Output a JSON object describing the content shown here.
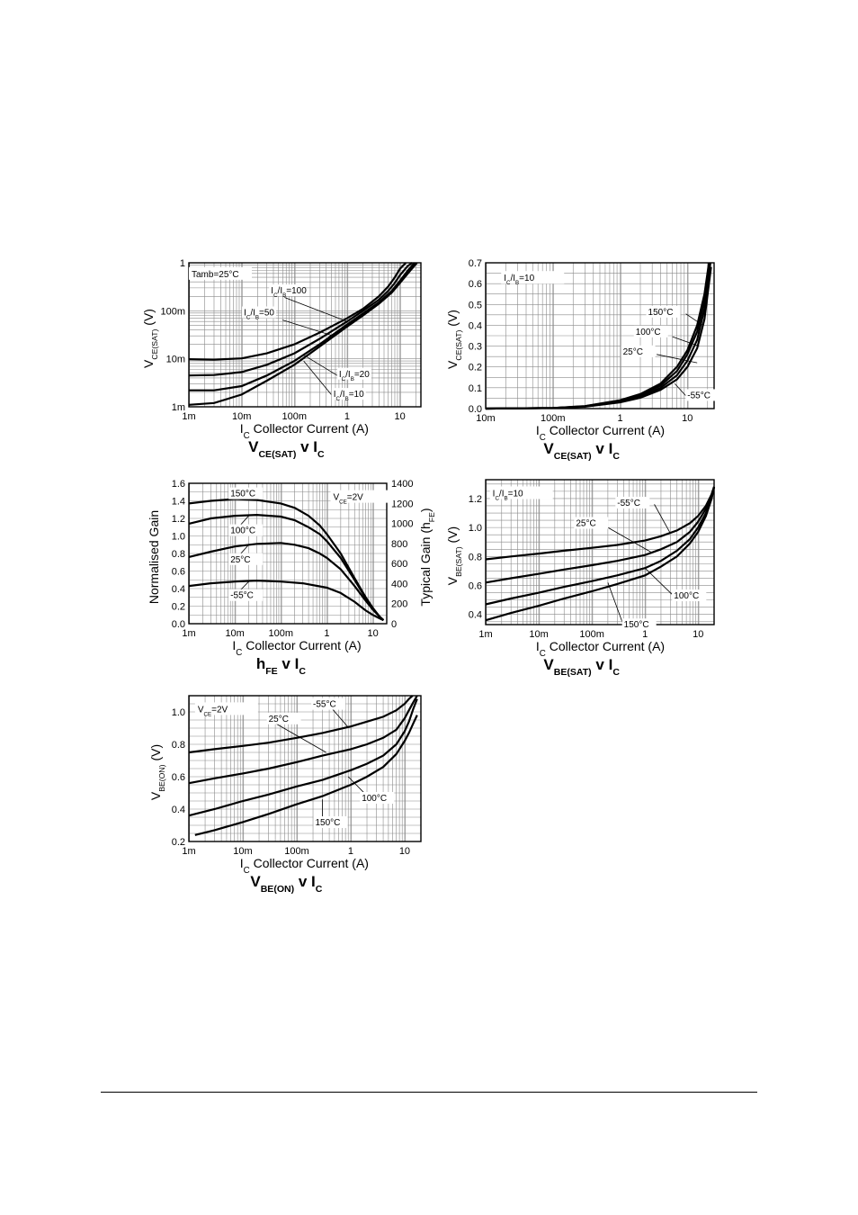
{
  "chart_data": [
    {
      "id": "vcesat_log",
      "type": "line",
      "title": "VCE(SAT) v IC",
      "xlabel": "IC Collector Current (A)",
      "ylabel": "VCE(SAT) (V)",
      "x_scale": "log",
      "y_scale": "log",
      "xlim": [
        0.001,
        25
      ],
      "ylim": [
        0.001,
        1
      ],
      "x_ticks": [
        {
          "v": 0.001,
          "t": "1m"
        },
        {
          "v": 0.01,
          "t": "10m"
        },
        {
          "v": 0.1,
          "t": "100m"
        },
        {
          "v": 1,
          "t": "1"
        },
        {
          "v": 10,
          "t": "10"
        }
      ],
      "y_ticks": [
        {
          "v": 0.001,
          "t": "1m"
        },
        {
          "v": 0.01,
          "t": "10m"
        },
        {
          "v": 0.1,
          "t": "100m"
        },
        {
          "v": 1,
          "t": "1"
        }
      ],
      "annotations": [
        "Tamb=25°C"
      ],
      "series": [
        {
          "name": "IC/IB=100",
          "x": [
            0.001,
            0.003,
            0.01,
            0.03,
            0.1,
            0.3,
            1,
            2,
            4,
            6,
            8,
            10,
            13
          ],
          "y": [
            0.0098,
            0.0096,
            0.0102,
            0.013,
            0.02,
            0.035,
            0.07,
            0.11,
            0.2,
            0.32,
            0.5,
            0.75,
            1
          ]
        },
        {
          "name": "IC/IB=50",
          "x": [
            0.001,
            0.003,
            0.01,
            0.03,
            0.1,
            0.3,
            1,
            2,
            4,
            6,
            8,
            10,
            14,
            17
          ],
          "y": [
            0.0045,
            0.0046,
            0.0053,
            0.0075,
            0.013,
            0.026,
            0.06,
            0.1,
            0.17,
            0.26,
            0.38,
            0.55,
            0.85,
            1
          ]
        },
        {
          "name": "IC/IB=20",
          "x": [
            0.001,
            0.003,
            0.01,
            0.03,
            0.1,
            0.3,
            1,
            2,
            4,
            7,
            10,
            14,
            19
          ],
          "y": [
            0.0022,
            0.0022,
            0.0027,
            0.0045,
            0.009,
            0.02,
            0.052,
            0.088,
            0.15,
            0.26,
            0.42,
            0.68,
            1
          ]
        },
        {
          "name": "IC/IB=10",
          "x": [
            0.001,
            0.003,
            0.01,
            0.03,
            0.1,
            0.3,
            1,
            2,
            4,
            7,
            10,
            15,
            21
          ],
          "y": [
            0.0011,
            0.0012,
            0.0018,
            0.0035,
            0.0075,
            0.018,
            0.047,
            0.08,
            0.14,
            0.24,
            0.38,
            0.65,
            1
          ]
        }
      ]
    },
    {
      "id": "vcesat_lin",
      "type": "line",
      "title": "VCE(SAT) v IC",
      "xlabel": "IC Collector Current (A)",
      "ylabel": "VCE(SAT) (V)",
      "x_scale": "log",
      "y_scale": "linear",
      "xlim": [
        0.01,
        25
      ],
      "ylim": [
        0,
        0.7
      ],
      "x_ticks": [
        {
          "v": 0.01,
          "t": "10m"
        },
        {
          "v": 0.1,
          "t": "100m"
        },
        {
          "v": 1,
          "t": "1"
        },
        {
          "v": 10,
          "t": "10"
        }
      ],
      "y_ticks": [
        {
          "v": 0,
          "t": "0.0"
        },
        {
          "v": 0.1,
          "t": "0.1"
        },
        {
          "v": 0.2,
          "t": "0.2"
        },
        {
          "v": 0.3,
          "t": "0.3"
        },
        {
          "v": 0.4,
          "t": "0.4"
        },
        {
          "v": 0.5,
          "t": "0.5"
        },
        {
          "v": 0.6,
          "t": "0.6"
        },
        {
          "v": 0.7,
          "t": "0.7"
        }
      ],
      "annotations": [
        "IC/IB=10"
      ],
      "series": [
        {
          "name": "150°C",
          "x": [
            0.01,
            0.1,
            0.3,
            1,
            2,
            4,
            7,
            10,
            14,
            18,
            21
          ],
          "y": [
            0,
            0.003,
            0.012,
            0.04,
            0.07,
            0.12,
            0.2,
            0.28,
            0.4,
            0.55,
            0.7
          ]
        },
        {
          "name": "100°C",
          "x": [
            0.01,
            0.1,
            0.3,
            1,
            2,
            4,
            7,
            10,
            14,
            18,
            21.5
          ],
          "y": [
            0,
            0.003,
            0.011,
            0.037,
            0.065,
            0.11,
            0.18,
            0.26,
            0.37,
            0.52,
            0.7
          ]
        },
        {
          "name": "25°C",
          "x": [
            0.01,
            0.1,
            0.3,
            1,
            2,
            4,
            7,
            10,
            14,
            18,
            22
          ],
          "y": [
            0,
            0.003,
            0.01,
            0.034,
            0.058,
            0.1,
            0.16,
            0.23,
            0.33,
            0.48,
            0.7
          ]
        },
        {
          "name": "-55°C",
          "x": [
            0.01,
            0.1,
            0.3,
            1,
            2,
            4,
            7,
            10,
            14,
            18,
            22.5
          ],
          "y": [
            0,
            0.003,
            0.009,
            0.03,
            0.052,
            0.09,
            0.14,
            0.2,
            0.29,
            0.43,
            0.68
          ]
        }
      ]
    },
    {
      "id": "hfe",
      "type": "line",
      "title": "hFE v IC",
      "xlabel": "IC Collector Current (A)",
      "ylabel": "Normalised Gain",
      "ylabel_right": "Typical Gain (hFE)",
      "x_scale": "log",
      "y_scale": "linear",
      "xlim": [
        0.001,
        20
      ],
      "ylim": [
        0,
        1.6
      ],
      "x_ticks": [
        {
          "v": 0.001,
          "t": "1m"
        },
        {
          "v": 0.01,
          "t": "10m"
        },
        {
          "v": 0.1,
          "t": "100m"
        },
        {
          "v": 1,
          "t": "1"
        },
        {
          "v": 10,
          "t": "10"
        }
      ],
      "y_ticks": [
        {
          "v": 0,
          "t": "0.0"
        },
        {
          "v": 0.2,
          "t": "0.2"
        },
        {
          "v": 0.4,
          "t": "0.4"
        },
        {
          "v": 0.6,
          "t": "0.6"
        },
        {
          "v": 0.8,
          "t": "0.8"
        },
        {
          "v": 1,
          "t": "1.0"
        },
        {
          "v": 1.2,
          "t": "1.2"
        },
        {
          "v": 1.4,
          "t": "1.4"
        },
        {
          "v": 1.6,
          "t": "1.6"
        }
      ],
      "y2_ticks": [
        {
          "v": 0,
          "t": "0"
        },
        {
          "v": 0.2286,
          "t": "200"
        },
        {
          "v": 0.4571,
          "t": "400"
        },
        {
          "v": 0.6857,
          "t": "600"
        },
        {
          "v": 0.9143,
          "t": "800"
        },
        {
          "v": 1.1429,
          "t": "1000"
        },
        {
          "v": 1.3714,
          "t": "1200"
        },
        {
          "v": 1.6,
          "t": "1400"
        }
      ],
      "annotations": [
        "VCE=2V"
      ],
      "series": [
        {
          "name": "150°C",
          "x": [
            0.001,
            0.003,
            0.01,
            0.03,
            0.1,
            0.2,
            0.4,
            0.7,
            1,
            2,
            4,
            7,
            10,
            14,
            17
          ],
          "y": [
            1.37,
            1.4,
            1.42,
            1.41,
            1.37,
            1.32,
            1.23,
            1.12,
            1.02,
            0.8,
            0.52,
            0.3,
            0.18,
            0.08,
            0.04
          ]
        },
        {
          "name": "100°C",
          "x": [
            0.001,
            0.003,
            0.01,
            0.03,
            0.1,
            0.2,
            0.4,
            0.7,
            1,
            2,
            4,
            7,
            10,
            14,
            17
          ],
          "y": [
            1.14,
            1.2,
            1.23,
            1.24,
            1.22,
            1.18,
            1.1,
            1.02,
            0.94,
            0.75,
            0.5,
            0.29,
            0.17,
            0.08,
            0.04
          ]
        },
        {
          "name": "25°C",
          "x": [
            0.001,
            0.003,
            0.01,
            0.03,
            0.1,
            0.2,
            0.4,
            0.7,
            1,
            2,
            4,
            7,
            10,
            14,
            17
          ],
          "y": [
            0.76,
            0.82,
            0.88,
            0.91,
            0.92,
            0.9,
            0.86,
            0.8,
            0.75,
            0.62,
            0.43,
            0.26,
            0.16,
            0.08,
            0.04
          ]
        },
        {
          "name": "-55°C",
          "x": [
            0.001,
            0.003,
            0.01,
            0.03,
            0.1,
            0.3,
            1,
            2,
            4,
            7,
            10,
            14,
            17
          ],
          "y": [
            0.43,
            0.46,
            0.48,
            0.49,
            0.48,
            0.46,
            0.41,
            0.35,
            0.25,
            0.15,
            0.1,
            0.06,
            0.04
          ]
        }
      ]
    },
    {
      "id": "vbesat",
      "type": "line",
      "title": "VBE(SAT) v IC",
      "xlabel": "IC Collector Current (A)",
      "ylabel": "VBE(SAT) (V)",
      "x_scale": "log",
      "y_scale": "linear",
      "xlim": [
        0.001,
        20
      ],
      "ylim": [
        0.33,
        1.33
      ],
      "x_ticks": [
        {
          "v": 0.001,
          "t": "1m"
        },
        {
          "v": 0.01,
          "t": "10m"
        },
        {
          "v": 0.1,
          "t": "100m"
        },
        {
          "v": 1,
          "t": "1"
        },
        {
          "v": 10,
          "t": "10"
        }
      ],
      "y_ticks": [
        {
          "v": 0.4,
          "t": "0.4"
        },
        {
          "v": 0.6,
          "t": "0.6"
        },
        {
          "v": 0.8,
          "t": "0.8"
        },
        {
          "v": 1,
          "t": "1.0"
        },
        {
          "v": 1.2,
          "t": "1.2"
        }
      ],
      "annotations": [
        "IC/IB=10"
      ],
      "series": [
        {
          "name": "-55°C",
          "x": [
            0.001,
            0.003,
            0.01,
            0.03,
            0.1,
            0.3,
            1,
            2,
            4,
            7,
            10,
            14,
            18,
            20
          ],
          "y": [
            0.78,
            0.8,
            0.82,
            0.84,
            0.86,
            0.88,
            0.91,
            0.94,
            0.98,
            1.03,
            1.08,
            1.15,
            1.23,
            1.28
          ]
        },
        {
          "name": "25°C",
          "x": [
            0.001,
            0.003,
            0.01,
            0.03,
            0.1,
            0.3,
            1,
            2,
            4,
            7,
            10,
            14,
            18,
            20
          ],
          "y": [
            0.62,
            0.65,
            0.68,
            0.71,
            0.74,
            0.77,
            0.81,
            0.85,
            0.9,
            0.97,
            1.04,
            1.13,
            1.23,
            1.28
          ]
        },
        {
          "name": "100°C",
          "x": [
            0.001,
            0.003,
            0.01,
            0.03,
            0.1,
            0.3,
            1,
            2,
            4,
            7,
            10,
            14,
            18,
            20
          ],
          "y": [
            0.47,
            0.51,
            0.55,
            0.59,
            0.63,
            0.67,
            0.72,
            0.77,
            0.84,
            0.92,
            1.0,
            1.1,
            1.21,
            1.28
          ]
        },
        {
          "name": "150°C",
          "x": [
            0.001,
            0.003,
            0.01,
            0.03,
            0.1,
            0.3,
            1,
            2,
            4,
            7,
            10,
            14,
            18,
            20
          ],
          "y": [
            0.36,
            0.41,
            0.46,
            0.51,
            0.56,
            0.61,
            0.67,
            0.73,
            0.8,
            0.89,
            0.97,
            1.08,
            1.2,
            1.28
          ]
        }
      ]
    },
    {
      "id": "vbeon",
      "type": "line",
      "title": "VBE(ON) v IC",
      "xlabel": "IC Collector Current (A)",
      "ylabel": "VBE(ON) (V)",
      "x_scale": "log",
      "y_scale": "linear",
      "xlim": [
        0.001,
        20
      ],
      "ylim": [
        0.2,
        1.1
      ],
      "x_ticks": [
        {
          "v": 0.001,
          "t": "1m"
        },
        {
          "v": 0.01,
          "t": "10m"
        },
        {
          "v": 0.1,
          "t": "100m"
        },
        {
          "v": 1,
          "t": "1"
        },
        {
          "v": 10,
          "t": "10"
        }
      ],
      "y_ticks": [
        {
          "v": 0.2,
          "t": "0.2"
        },
        {
          "v": 0.4,
          "t": "0.4"
        },
        {
          "v": 0.6,
          "t": "0.6"
        },
        {
          "v": 0.8,
          "t": "0.8"
        },
        {
          "v": 1,
          "t": "1.0"
        }
      ],
      "annotations": [
        "VCE=2V"
      ],
      "series": [
        {
          "name": "-55°C",
          "x": [
            0.001,
            0.003,
            0.01,
            0.03,
            0.1,
            0.3,
            1,
            2,
            4,
            7,
            10,
            12,
            14
          ],
          "y": [
            0.75,
            0.77,
            0.79,
            0.81,
            0.84,
            0.87,
            0.91,
            0.94,
            0.97,
            1.01,
            1.05,
            1.08,
            1.1
          ]
        },
        {
          "name": "25°C",
          "x": [
            0.001,
            0.003,
            0.01,
            0.03,
            0.1,
            0.3,
            1,
            2,
            4,
            7,
            10,
            12,
            14.5,
            17
          ],
          "y": [
            0.56,
            0.59,
            0.62,
            0.65,
            0.69,
            0.73,
            0.77,
            0.8,
            0.84,
            0.89,
            0.96,
            1.01,
            1.06,
            1.1
          ]
        },
        {
          "name": "100°C",
          "x": [
            0.001,
            0.003,
            0.01,
            0.03,
            0.1,
            0.3,
            1,
            2,
            4,
            7,
            10,
            12,
            14.5,
            17
          ],
          "y": [
            0.36,
            0.4,
            0.45,
            0.49,
            0.54,
            0.58,
            0.64,
            0.68,
            0.73,
            0.8,
            0.88,
            0.94,
            1.02,
            1.08
          ]
        },
        {
          "name": "150°C",
          "x": [
            0.0013,
            0.003,
            0.01,
            0.03,
            0.1,
            0.3,
            1,
            2,
            4,
            7,
            10,
            12,
            14.5,
            17
          ],
          "y": [
            0.24,
            0.27,
            0.32,
            0.37,
            0.43,
            0.48,
            0.55,
            0.6,
            0.66,
            0.74,
            0.82,
            0.87,
            0.93,
            0.98
          ]
        }
      ]
    }
  ]
}
